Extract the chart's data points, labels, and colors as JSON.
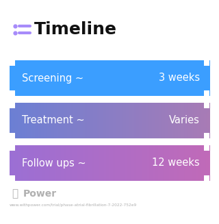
{
  "title": "Timeline",
  "title_icon_color": "#7c3aed",
  "background_color": "#ffffff",
  "rows": [
    {
      "label": "Screening ~",
      "value": "3 weeks",
      "color_left": "#3b9eff",
      "color_right": "#3b9eff"
    },
    {
      "label": "Treatment ~",
      "value": "Varies",
      "color_left": "#6b7fd4",
      "color_right": "#a87bb5"
    },
    {
      "label": "Follow ups ~",
      "value": "12 weeks",
      "color_left": "#9b6fd4",
      "color_right": "#c06ab8"
    }
  ],
  "footer_logo_text": "Power",
  "footer_url": "www.withpower.com/trial/phase-atrial-fibrillation-7-2022-752e9",
  "footer_color": "#b0b0b0",
  "fig_width": 3.2,
  "fig_height": 3.27,
  "dpi": 100
}
